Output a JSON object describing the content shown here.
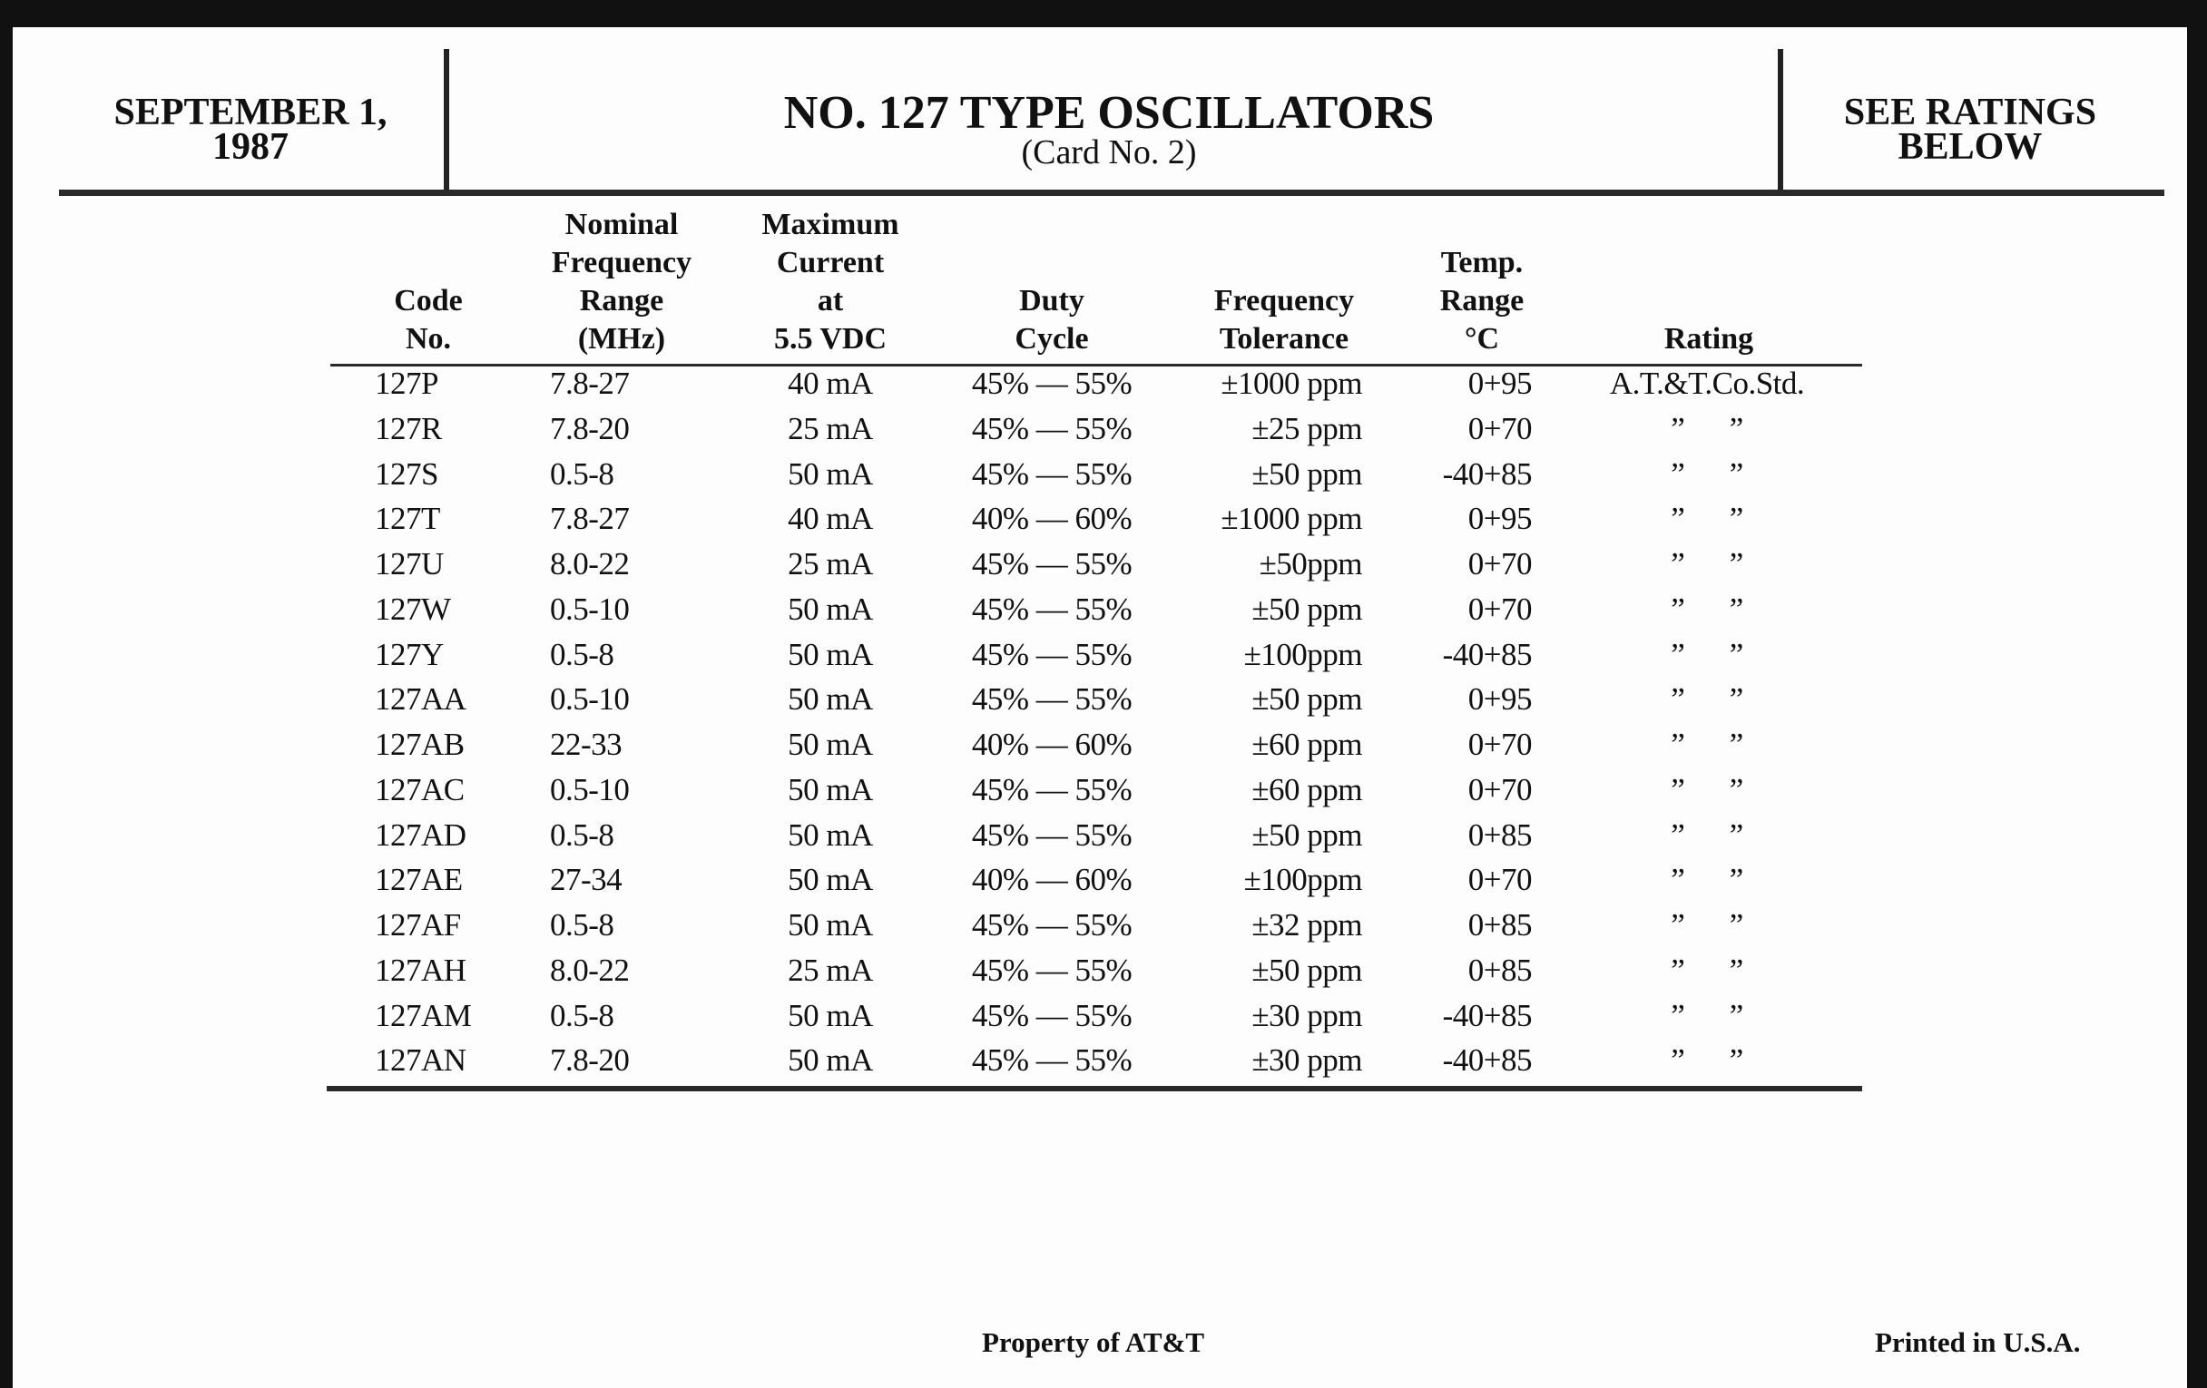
{
  "header": {
    "date_line1": "SEPTEMBER 1,",
    "date_line2": "1987",
    "title": "NO. 127 TYPE OSCILLATORS",
    "subtitle": "(Card No. 2)",
    "ratings_line1": "SEE RATINGS",
    "ratings_line2": "BELOW"
  },
  "table": {
    "columns": [
      [
        "Code",
        "No."
      ],
      [
        "Nominal",
        "Frequency",
        "Range",
        "(MHz)"
      ],
      [
        "Maximum",
        "Current",
        "at",
        "5.5 VDC"
      ],
      [
        "Duty",
        "Cycle"
      ],
      [
        "Frequency",
        "Tolerance"
      ],
      [
        "Temp.",
        "Range",
        "°C"
      ],
      [
        "Rating"
      ]
    ],
    "rows": [
      [
        "127P",
        "7.8-27",
        "40 mA",
        "45% — 55%",
        "±1000 ppm",
        "0+95",
        "A.T.&T.Co.Std."
      ],
      [
        "127R",
        "7.8-20",
        "25 mA",
        "45% — 55%",
        "±25 ppm",
        "0+70",
        "”      ”"
      ],
      [
        "127S",
        "0.5-8",
        "50 mA",
        "45% — 55%",
        "±50 ppm",
        "-40+85",
        "”      ”"
      ],
      [
        "127T",
        "7.8-27",
        "40 mA",
        "40% — 60%",
        "±1000 ppm",
        "0+95",
        "”      ”"
      ],
      [
        "127U",
        "8.0-22",
        "25 mA",
        "45% — 55%",
        "±50ppm",
        "0+70",
        "”      ”"
      ],
      [
        "127W",
        "0.5-10",
        "50 mA",
        "45% — 55%",
        "±50 ppm",
        "0+70",
        "”      ”"
      ],
      [
        "127Y",
        "0.5-8",
        "50 mA",
        "45% — 55%",
        "±100ppm",
        "-40+85",
        "”      ”"
      ],
      [
        "127AA",
        "0.5-10",
        "50 mA",
        "45% — 55%",
        "±50 ppm",
        "0+95",
        "”      ”"
      ],
      [
        "127AB",
        "22-33",
        "50 mA",
        "40% — 60%",
        "±60 ppm",
        "0+70",
        "”      ”"
      ],
      [
        "127AC",
        "0.5-10",
        "50 mA",
        "45% — 55%",
        "±60 ppm",
        "0+70",
        "”      ”"
      ],
      [
        "127AD",
        "0.5-8",
        "50 mA",
        "45% — 55%",
        "±50 ppm",
        "0+85",
        "”      ”"
      ],
      [
        "127AE",
        "27-34",
        "50 mA",
        "40% — 60%",
        "±100ppm",
        "0+70",
        "”      ”"
      ],
      [
        "127AF",
        "0.5-8",
        "50 mA",
        "45% — 55%",
        "±32 ppm",
        "0+85",
        "”      ”"
      ],
      [
        "127AH",
        "8.0-22",
        "25 mA",
        "45% — 55%",
        "±50 ppm",
        "0+85",
        "”      ”"
      ],
      [
        "127AM",
        "0.5-8",
        "50 mA",
        "45% — 55%",
        "±30 ppm",
        "-40+85",
        "”      ”"
      ],
      [
        "127AN",
        "7.8-20",
        "50 mA",
        "45% — 55%",
        "±30 ppm",
        "-40+85",
        "”      ”"
      ]
    ]
  },
  "footer": {
    "property": "Property of AT&T",
    "printed": "Printed in U.S.A."
  }
}
